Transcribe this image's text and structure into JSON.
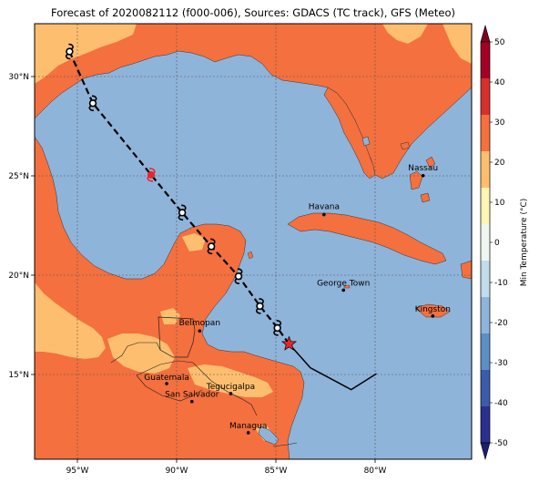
{
  "title": "Forecast of 2020082112 (f000-006), Sources: GDACS (TC track), GFS (Meteo)",
  "colors": {
    "ocean": "#8fb4da",
    "land_warm": "#f4703f",
    "land_mild": "#fdbf6f",
    "track": "#000000",
    "star": "#e8262b"
  },
  "axes": {
    "lon_ticks": [
      "95°W",
      "90°W",
      "85°W",
      "80°W"
    ],
    "lat_ticks": [
      "30°N",
      "25°N",
      "20°N",
      "15°N"
    ],
    "lon_range": [
      -97.3,
      -74.8
    ],
    "lat_range": [
      10.8,
      32.7
    ]
  },
  "cities": [
    {
      "name": "Nassau",
      "lon": -77.3,
      "lat": 25.06
    },
    {
      "name": "Havana",
      "lon": -82.4,
      "lat": 23.1
    },
    {
      "name": "George Town",
      "lon": -81.4,
      "lat": 19.3
    },
    {
      "name": "Kingston",
      "lon": -76.8,
      "lat": 18.0
    },
    {
      "name": "Belmopan",
      "lon": -88.8,
      "lat": 17.25
    },
    {
      "name": "Guatemala",
      "lon": -90.5,
      "lat": 14.6
    },
    {
      "name": "Tegucigalpa",
      "lon": -87.2,
      "lat": 14.1
    },
    {
      "name": "San Salvador",
      "lon": -89.2,
      "lat": 13.7
    },
    {
      "name": "Managua",
      "lon": -86.3,
      "lat": 12.13
    }
  ],
  "track": {
    "forecast": [
      {
        "lon": -95.5,
        "lat": 31.3
      },
      {
        "lon": -94.3,
        "lat": 28.7
      },
      {
        "lon": -91.3,
        "lat": 25.1
      },
      {
        "lon": -89.7,
        "lat": 23.2
      },
      {
        "lon": -88.2,
        "lat": 21.5
      },
      {
        "lon": -86.8,
        "lat": 20.0
      },
      {
        "lon": -85.7,
        "lat": 18.5
      },
      {
        "lon": -84.8,
        "lat": 17.4
      },
      {
        "lon": -84.2,
        "lat": 16.6
      }
    ],
    "past": [
      {
        "lon": -84.2,
        "lat": 16.6
      },
      {
        "lon": -83.1,
        "lat": 15.4
      },
      {
        "lon": -81.0,
        "lat": 14.3
      },
      {
        "lon": -79.7,
        "lat": 15.1
      }
    ],
    "symbols": [
      {
        "lon": -95.5,
        "lat": 31.3,
        "kind": "cyclone"
      },
      {
        "lon": -94.3,
        "lat": 28.7,
        "kind": "cyclone"
      },
      {
        "lon": -91.3,
        "lat": 25.1,
        "kind": "storm"
      },
      {
        "lon": -89.7,
        "lat": 23.2,
        "kind": "cyclone"
      },
      {
        "lon": -88.2,
        "lat": 21.5,
        "kind": "cyclone"
      },
      {
        "lon": -86.8,
        "lat": 20.0,
        "kind": "cyclone"
      },
      {
        "lon": -85.7,
        "lat": 18.5,
        "kind": "cyclone"
      },
      {
        "lon": -84.8,
        "lat": 17.4,
        "kind": "cyclone"
      }
    ],
    "current_position": {
      "lon": -84.2,
      "lat": 16.6
    }
  },
  "colorbar": {
    "label": "Min Temperature (°C)",
    "levels": [
      -50,
      -40,
      -30,
      -20,
      -10,
      0,
      10,
      20,
      30,
      40,
      50
    ],
    "colors": [
      "#2b2f8f",
      "#3a5ca9",
      "#5e8fc4",
      "#8fb4da",
      "#c3dcec",
      "#eef6f0",
      "#fef4b4",
      "#fdbf6f",
      "#f4703f",
      "#d7302c",
      "#a50026"
    ],
    "under_color": "#1c1f6e",
    "over_color": "#7f0022"
  }
}
